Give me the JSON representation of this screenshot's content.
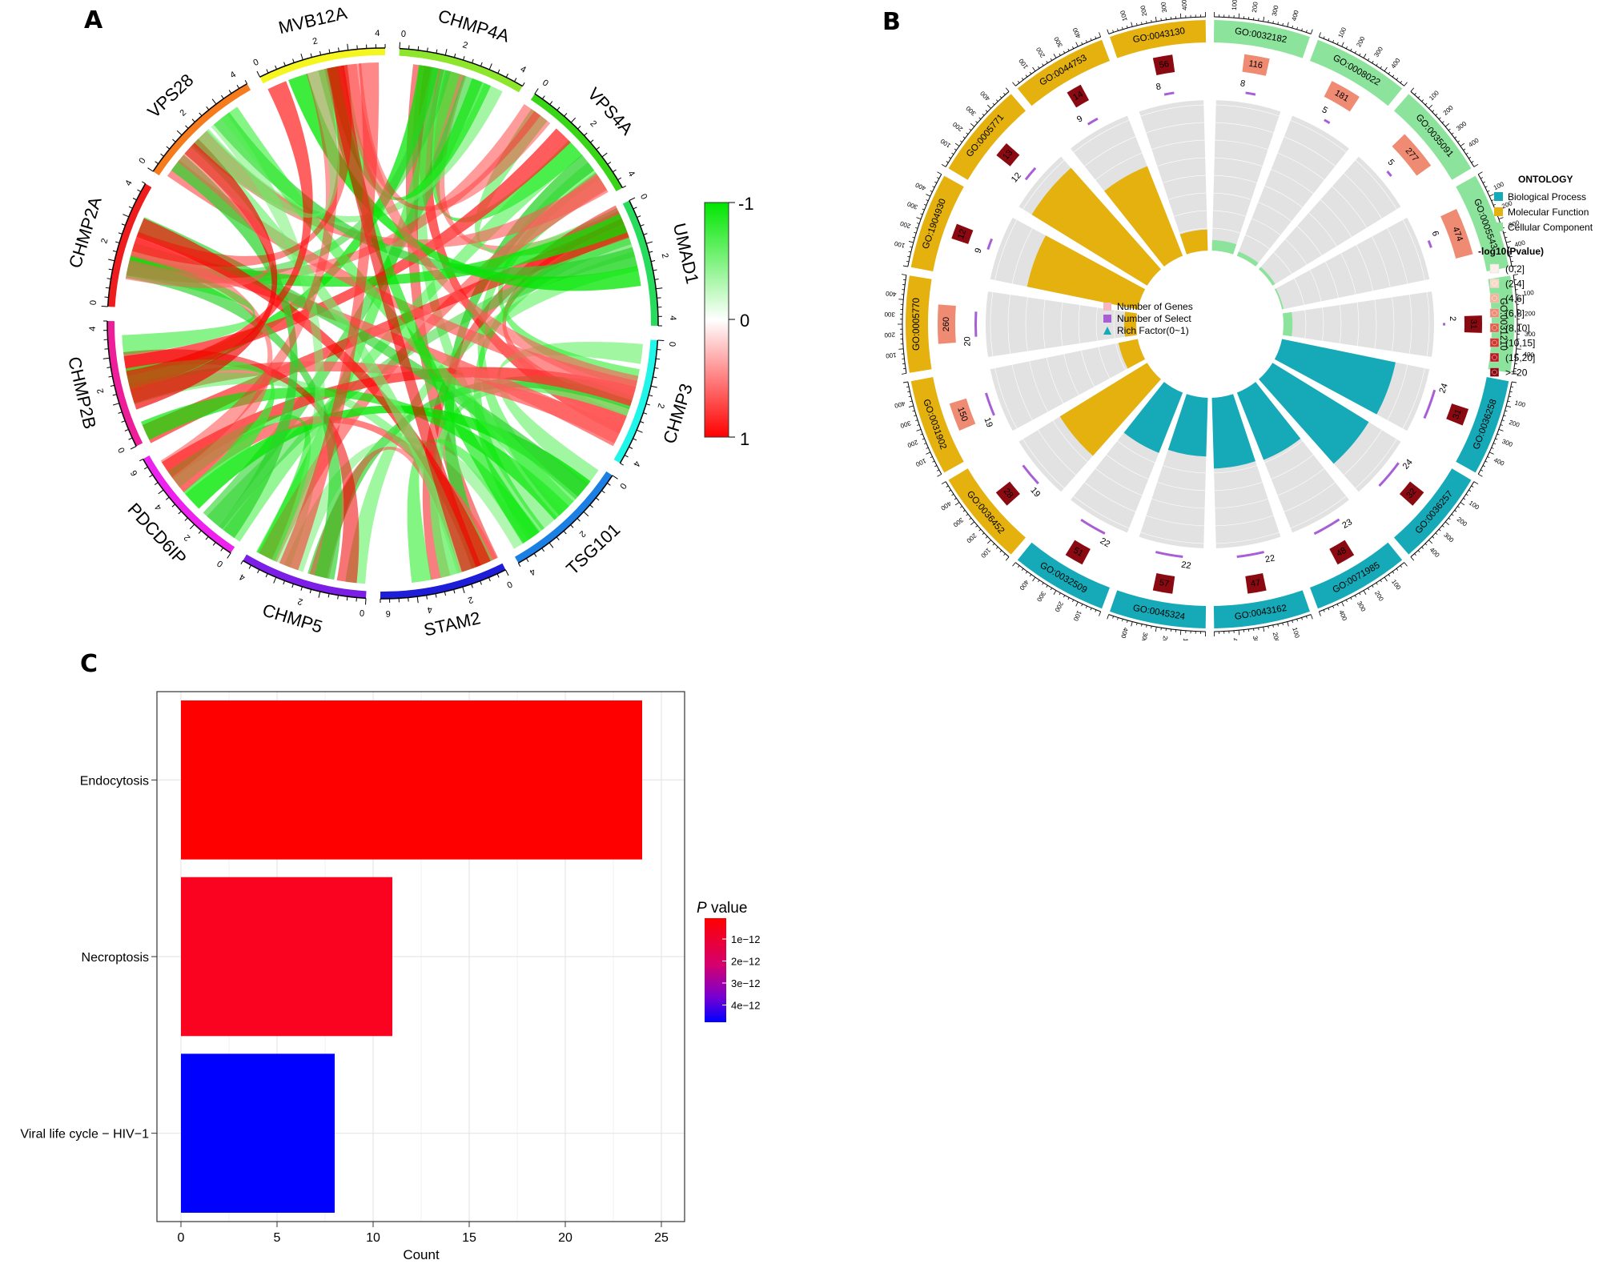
{
  "panels": {
    "a": "A",
    "b": "B",
    "c": "C"
  },
  "chart_data": [
    {
      "type": "chord",
      "sectors": [
        {
          "name": "CHMP4A",
          "color": "#8ee62c",
          "ticks": [
            "0",
            "2",
            "4"
          ]
        },
        {
          "name": "VPS4A",
          "color": "#39d618",
          "ticks": [
            "0",
            "2",
            "4"
          ]
        },
        {
          "name": "UMAD1",
          "color": "#27db5d",
          "ticks": [
            "0",
            "2",
            "4"
          ]
        },
        {
          "name": "CHMP3",
          "color": "#1ff5e8",
          "ticks": [
            "0",
            "2",
            "4"
          ]
        },
        {
          "name": "TSG101",
          "color": "#1c7fe3",
          "ticks": [
            "0",
            "2",
            "4"
          ]
        },
        {
          "name": "STAM2",
          "color": "#1e1ed8",
          "ticks": [
            "0",
            "2",
            "4",
            "6"
          ]
        },
        {
          "name": "CHMP5",
          "color": "#7b1ee6",
          "ticks": [
            "0",
            "2",
            "4"
          ]
        },
        {
          "name": "PDCD6IP",
          "color": "#ee22ee",
          "ticks": [
            "0",
            "2",
            "4",
            "6"
          ]
        },
        {
          "name": "CHMP2B",
          "color": "#ee1d9a",
          "ticks": [
            "0",
            "2",
            "4"
          ]
        },
        {
          "name": "CHMP2A",
          "color": "#ee1c1c",
          "ticks": [
            "0",
            "2",
            "4"
          ]
        },
        {
          "name": "VPS28",
          "color": "#f57b1d",
          "ticks": [
            "0",
            "2",
            "4"
          ]
        },
        {
          "name": "MVB12A",
          "color": "#f5f51f",
          "ticks": [
            "0",
            "2",
            "4"
          ]
        }
      ],
      "legend": {
        "labels": [
          "-1",
          "0",
          "1"
        ],
        "colors": [
          "#00e600",
          "#ffffff",
          "#ff0000"
        ]
      }
    },
    {
      "type": "circos-go",
      "terms": [
        {
          "id": "GO:0032182",
          "ontology": "CC",
          "genes": 116,
          "select": 8,
          "rich": 0.07
        },
        {
          "id": "GO:0008022",
          "ontology": "CC",
          "genes": 181,
          "select": 5,
          "rich": 0.03
        },
        {
          "id": "GO:0035091",
          "ontology": "CC",
          "genes": 277,
          "select": 5,
          "rich": 0.02
        },
        {
          "id": "GO:0005543",
          "ontology": "CC",
          "genes": 474,
          "select": 6,
          "rich": 0.01
        },
        {
          "id": "GO:0031210",
          "ontology": "CC",
          "genes": 31,
          "select": 2,
          "rich": 0.06
        },
        {
          "id": "GO:0036258",
          "ontology": "BP",
          "genes": 31,
          "select": 24,
          "rich": 0.77
        },
        {
          "id": "GO:0036257",
          "ontology": "BP",
          "genes": 32,
          "select": 24,
          "rich": 0.75
        },
        {
          "id": "GO:0071985",
          "ontology": "BP",
          "genes": 48,
          "select": 23,
          "rich": 0.48
        },
        {
          "id": "GO:0043162",
          "ontology": "BP",
          "genes": 47,
          "select": 22,
          "rich": 0.47
        },
        {
          "id": "GO:0045324",
          "ontology": "BP",
          "genes": 57,
          "select": 22,
          "rich": 0.39
        },
        {
          "id": "GO:0032509",
          "ontology": "BP",
          "genes": 51,
          "select": 22,
          "rich": 0.43
        },
        {
          "id": "GO:0036452",
          "ontology": "MF",
          "genes": 28,
          "select": 19,
          "rich": 0.68
        },
        {
          "id": "GO:0031902",
          "ontology": "MF",
          "genes": 150,
          "select": 19,
          "rich": 0.13
        },
        {
          "id": "GO:0005770",
          "ontology": "MF",
          "genes": 260,
          "select": 20,
          "rich": 0.08
        },
        {
          "id": "GO:1904930",
          "ontology": "MF",
          "genes": 12,
          "select": 9,
          "rich": 0.75
        },
        {
          "id": "GO:0005771",
          "ontology": "MF",
          "genes": 13,
          "select": 12,
          "rich": 0.9
        },
        {
          "id": "GO:0044753",
          "ontology": "MF",
          "genes": 14,
          "select": 9,
          "rich": 0.64
        },
        {
          "id": "GO:0043130",
          "ontology": "MF",
          "genes": 56,
          "select": 8,
          "rich": 0.14
        }
      ],
      "scale_ticks": [
        "100",
        "200",
        "300",
        "400"
      ],
      "inner_legend": [
        "Number of Genes",
        "Number of Select",
        "Rich Factor(0~1)"
      ],
      "ontology_legend": {
        "title": "ONTOLOGY",
        "items": [
          {
            "label": "Biological Process",
            "color": "#16a9b7"
          },
          {
            "label": "Molecular Function",
            "color": "#e4b10e"
          },
          {
            "label": "Cellular Component",
            "color": "#8ce39b"
          }
        ]
      },
      "pvalue_legend": {
        "title": "-log10(Pvalue)",
        "items": [
          {
            "label": "(0,2]",
            "color": "#fbeee8"
          },
          {
            "label": "(2,4]",
            "color": "#f9d8c6"
          },
          {
            "label": "(4,6]",
            "color": "#f5b29b"
          },
          {
            "label": "(6,8]",
            "color": "#ef8a73"
          },
          {
            "label": "(8,10]",
            "color": "#e5604c"
          },
          {
            "label": "(10,15]",
            "color": "#d4352c"
          },
          {
            "label": "(15,20]",
            "color": "#b81822"
          },
          {
            "label": ">=20",
            "color": "#8b0a12"
          }
        ]
      }
    },
    {
      "type": "bar",
      "orientation": "horizontal",
      "categories": [
        "Endocytosis",
        "Necroptosis",
        "Viral life cycle − HIV−1"
      ],
      "values": [
        24,
        11,
        8
      ],
      "colors": [
        "#ff0000",
        "#f90320",
        "#0000ff"
      ],
      "xlabel": "Count",
      "xlim": [
        0,
        25
      ],
      "xticks": [
        "0",
        "5",
        "10",
        "15",
        "20",
        "25"
      ],
      "legend": {
        "title_italic": "P",
        "title_rest": " value",
        "labels": [
          "1e−12",
          "2e−12",
          "3e−12",
          "4e−12"
        ]
      }
    }
  ]
}
